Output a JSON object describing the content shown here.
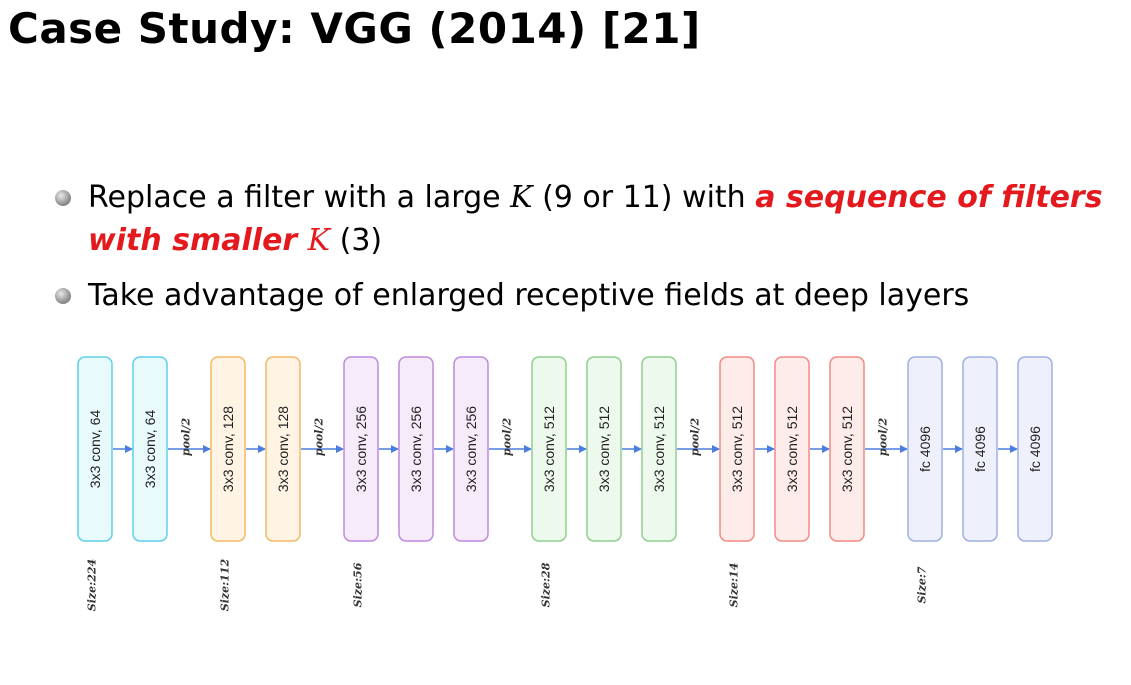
{
  "title": "Case Study: VGG (2014) [21]",
  "bullets": [
    {
      "parts": [
        {
          "text": "Replace a filter with a large ",
          "style": "normal"
        },
        {
          "text": "K",
          "style": "math"
        },
        {
          "text": " (9 or 11) with ",
          "style": "normal"
        },
        {
          "text": "a sequence of filters with smaller ",
          "style": "emphasis"
        },
        {
          "text": "K",
          "style": "emphasis-math"
        },
        {
          "text": " (3)",
          "style": "normal"
        }
      ]
    },
    {
      "parts": [
        {
          "text": "Take advantage of enlarged receptive fields at deep layers",
          "style": "normal"
        }
      ]
    }
  ],
  "emphasis_color": "#e3191d",
  "diagram": {
    "pool_label": "pool/2",
    "groups": [
      {
        "size_label": "Size:224",
        "stroke": "#5ed0e8",
        "fill": "#e9fafd",
        "layers": [
          "3x3 conv, 64",
          "3x3 conv, 64"
        ]
      },
      {
        "size_label": "Size:112",
        "stroke": "#f2b968",
        "fill": "#fff4e3",
        "layers": [
          "3x3 conv, 128",
          "3x3 conv, 128"
        ]
      },
      {
        "size_label": "Size:56",
        "stroke": "#bf8ae0",
        "fill": "#f5ebfb",
        "layers": [
          "3x3 conv, 256",
          "3x3 conv, 256",
          "3x3 conv, 256"
        ]
      },
      {
        "size_label": "Size:28",
        "stroke": "#8fcf8f",
        "fill": "#eef9ee",
        "layers": [
          "3x3 conv, 512",
          "3x3 conv, 512",
          "3x3 conv, 512"
        ]
      },
      {
        "size_label": "Size:14",
        "stroke": "#f08b86",
        "fill": "#fdecea",
        "layers": [
          "3x3 conv, 512",
          "3x3 conv, 512",
          "3x3 conv, 512"
        ]
      },
      {
        "size_label": "Size:7",
        "stroke": "#9fb0e3",
        "fill": "#eef1fb",
        "layers": [
          "fc 4096",
          "fc 4096",
          "fc 4096"
        ]
      }
    ],
    "arrow_color": "#4a7de0"
  }
}
